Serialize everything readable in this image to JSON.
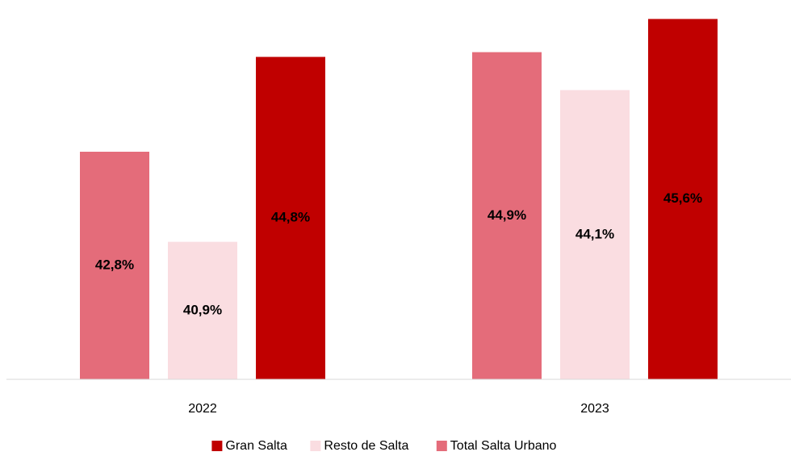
{
  "chart_data": {
    "type": "bar",
    "categories": [
      "2022",
      "2023"
    ],
    "series": [
      {
        "name": "Total Salta Urbano",
        "color": "#e46c7a",
        "values": [
          42.8,
          44.9
        ],
        "value_labels": [
          "42,8%",
          "44,9%"
        ]
      },
      {
        "name": "Resto de Salta",
        "color": "#fadde1",
        "values": [
          40.9,
          44.1
        ],
        "value_labels": [
          "40,9%",
          "44,1%"
        ]
      },
      {
        "name": "Gran Salta",
        "color": "#c00000",
        "values": [
          44.8,
          45.6
        ],
        "value_labels": [
          "44,8%",
          "45,6%"
        ]
      }
    ],
    "ylim": [
      38,
      46
    ],
    "legend": "bottom"
  }
}
